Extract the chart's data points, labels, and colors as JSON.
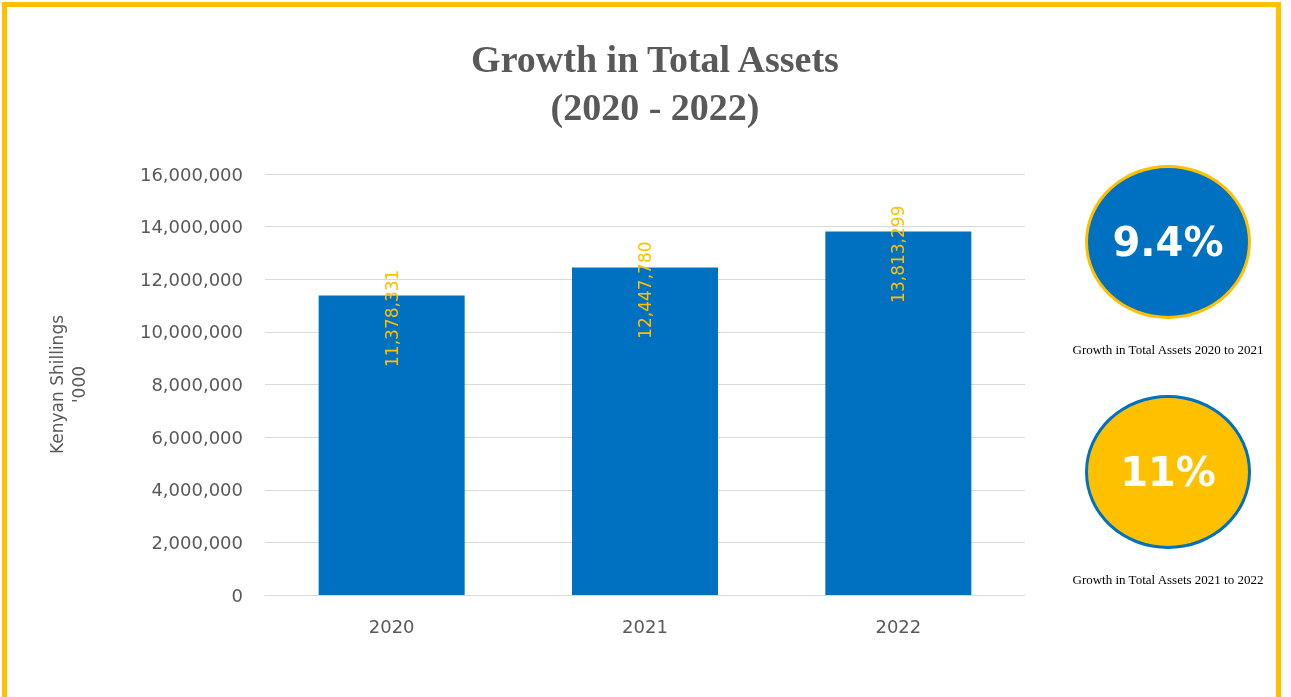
{
  "chart_data": {
    "type": "bar",
    "title": "Growth in Total Assets\n(2020 - 2022)",
    "ylabel": "Kenyan Shillings '000",
    "categories": [
      "2020",
      "2021",
      "2022"
    ],
    "values": [
      11378331,
      12447780,
      13813299
    ],
    "color": "#0070c0",
    "value_labels": [
      "11,378,331",
      "12,447,780",
      "13,813,299"
    ],
    "ylim": [
      0,
      16000000
    ],
    "yticks": [
      0,
      {
        "value": 2000000,
        "label": "2,000,000"
      },
      {
        "value": 4000000,
        "label": "4,000,000"
      },
      {
        "value": 6000000,
        "label": "6,000,000"
      },
      {
        "value": 8000000,
        "label": "8,000,000"
      },
      {
        "value": 10000000,
        "label": "10,000,000"
      },
      {
        "value": 12000000,
        "label": "12,000,000"
      },
      {
        "value": 14000000,
        "label": "14,000,000"
      },
      {
        "value": 16000000,
        "label": "16,000,000"
      }
    ],
    "grid": "y",
    "annotations": [
      "9.4%",
      "Growth in Total Assets 2020 to 2021",
      "11%",
      "Growth in Total Assets 2021 to 2022"
    ]
  }
}
